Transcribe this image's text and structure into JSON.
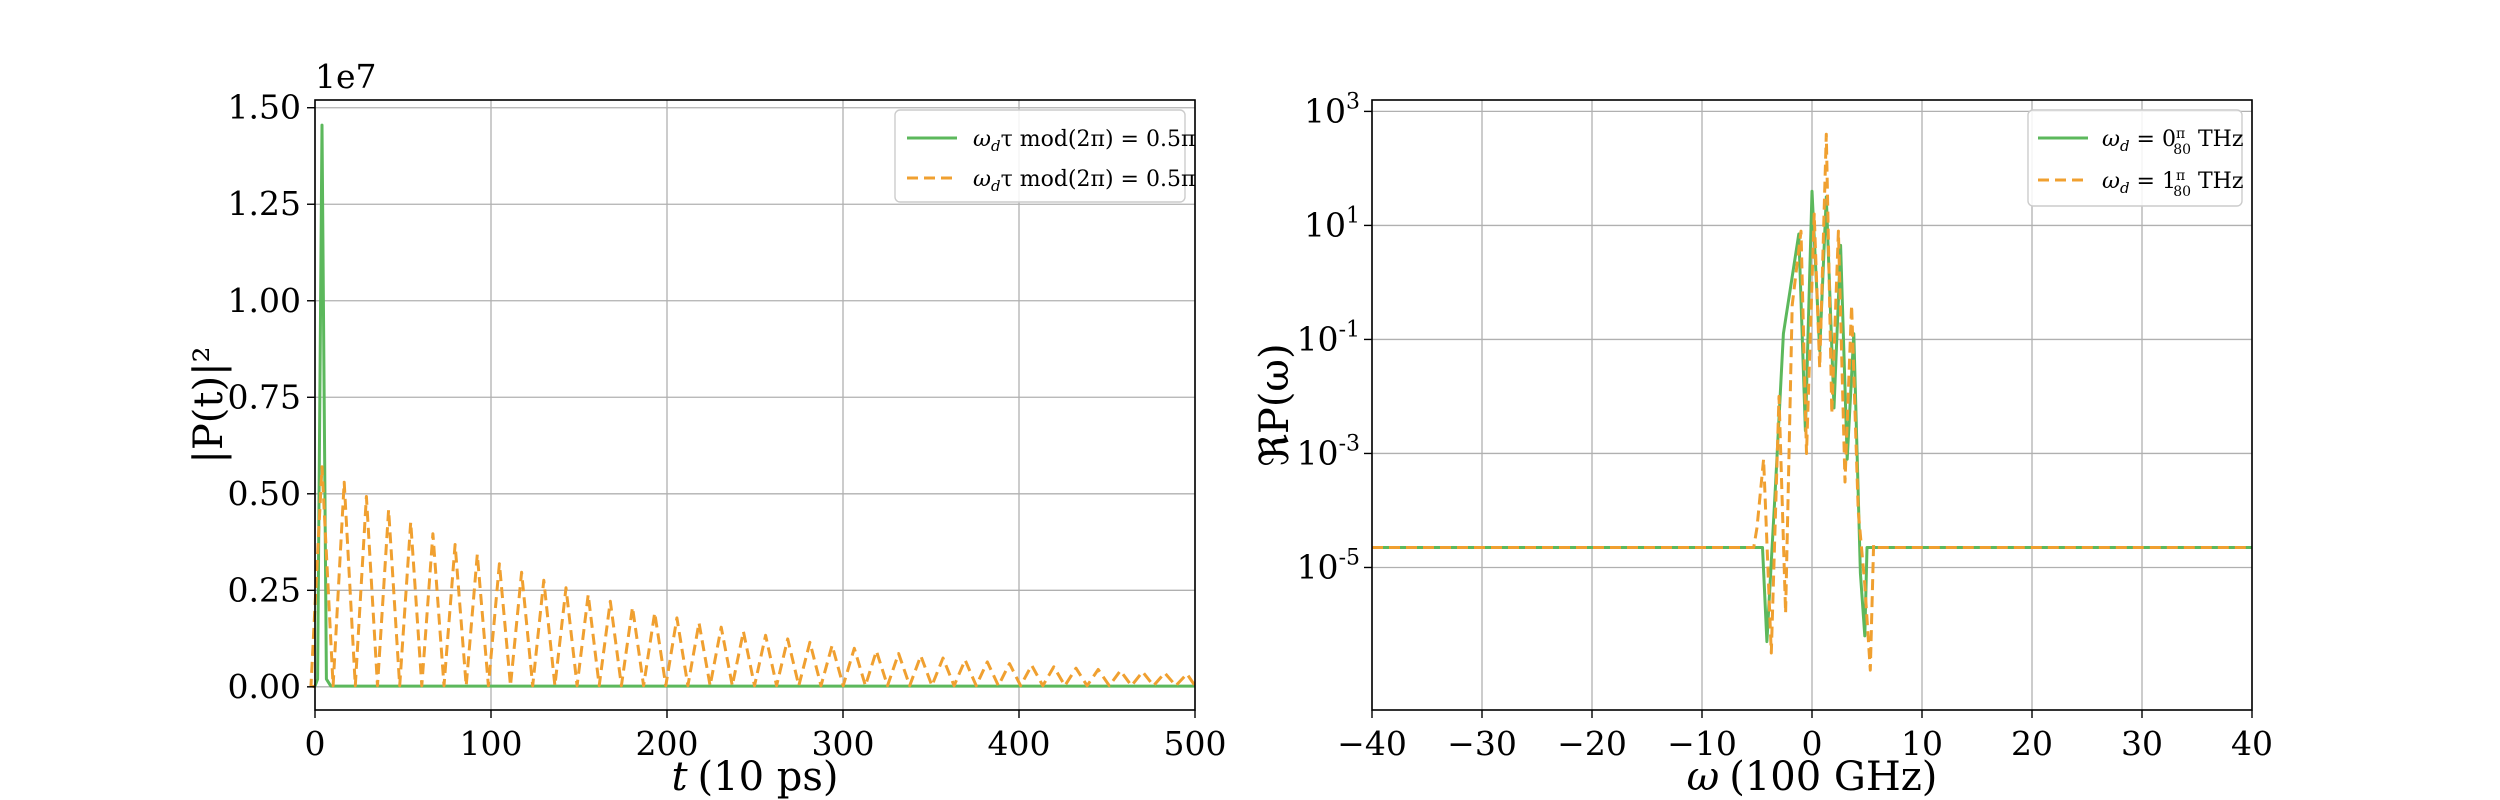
{
  "chart_data": [
    {
      "type": "line",
      "xlabel_var": "t",
      "xlabel_unit": "(10 ps)",
      "ylabel": "|P(t)|²",
      "offset_text": "1e7",
      "xlim": [
        0,
        500
      ],
      "ylim": [
        -0.06,
        1.52
      ],
      "xticks": [
        "0",
        "100",
        "200",
        "300",
        "400",
        "500"
      ],
      "yticks": [
        "0.00",
        "0.25",
        "0.50",
        "0.75",
        "1.00",
        "1.25",
        "1.50"
      ],
      "grid": true,
      "legend_position": "upper right",
      "series": [
        {
          "name": "ω_d τ mod(2π) = 0.5π",
          "color": "#5cb85c",
          "style": "solid",
          "pulse_train": {
            "first_peak_x": 4,
            "first_peak_y": 1.455,
            "period": 0,
            "decay_per_period": 0,
            "end_x": 500
          }
        },
        {
          "name": "ω_d τ mod(2π) = 0.5π",
          "color": "#f0a030",
          "style": "dashed",
          "pulse_train": {
            "first_peak_x": 4,
            "first_peak_y": 0.57,
            "period": 12.6,
            "decay_per_period": 0.93,
            "end_x": 500
          }
        }
      ]
    },
    {
      "type": "line",
      "xlabel_var": "ω",
      "xlabel_unit": "(100 GHz)",
      "ylabel": "ℜP(ω)",
      "xlim": [
        -40,
        40
      ],
      "ylim_log10": [
        -7.5,
        3.2
      ],
      "log_y": true,
      "xticks": [
        "−40",
        "−30",
        "−20",
        "−10",
        "0",
        "10",
        "20",
        "30",
        "40"
      ],
      "yticks": [
        {
          "base": "10",
          "exp": "3"
        },
        {
          "base": "10",
          "exp": "1"
        },
        {
          "base": "10",
          "exp": "-1"
        },
        {
          "base": "10",
          "exp": "-3"
        },
        {
          "base": "10",
          "exp": "-5"
        }
      ],
      "grid": true,
      "legend_position": "upper right",
      "series": [
        {
          "name": "ω_d = 0 π/80 THz",
          "color": "#5cb85c",
          "style": "solid",
          "baseline_log10": -4.65,
          "active_range": [
            -4.5,
            5.0
          ],
          "peaks": [
            [
              -4.1,
              -6.3
            ],
            [
              -3.3,
              -3.5
            ],
            [
              -2.6,
              -0.9
            ],
            [
              -1.2,
              0.85
            ],
            [
              -0.6,
              -2.6
            ],
            [
              0.0,
              1.6
            ],
            [
              0.7,
              -1.2
            ],
            [
              1.3,
              1.5
            ],
            [
              2.0,
              -2.2
            ],
            [
              2.6,
              0.65
            ],
            [
              3.2,
              -3.1
            ],
            [
              3.8,
              -0.9
            ],
            [
              4.4,
              -5.1
            ],
            [
              4.8,
              -6.2
            ]
          ]
        },
        {
          "name": "ω_d = 1 π/80 THz",
          "color": "#f0a030",
          "style": "dashed",
          "baseline_log10": -4.65,
          "active_range": [
            -5.3,
            5.8
          ],
          "peaks": [
            [
              -5.0,
              -4.3
            ],
            [
              -4.4,
              -3.1
            ],
            [
              -3.7,
              -6.5
            ],
            [
              -3.0,
              -2.0
            ],
            [
              -2.4,
              -5.8
            ],
            [
              -1.8,
              -0.4
            ],
            [
              -1.0,
              0.9
            ],
            [
              -0.5,
              -3.0
            ],
            [
              0.2,
              1.2
            ],
            [
              0.7,
              -1.5
            ],
            [
              1.3,
              2.6
            ],
            [
              1.8,
              -2.3
            ],
            [
              2.4,
              0.9
            ],
            [
              3.0,
              -3.5
            ],
            [
              3.6,
              -0.4
            ],
            [
              4.2,
              -4.0
            ],
            [
              4.8,
              -5.3
            ],
            [
              5.3,
              -6.8
            ],
            [
              5.6,
              -4.6
            ]
          ]
        }
      ]
    }
  ],
  "legend_layout": [
    {
      "prefix": "ω",
      "sub": "d",
      "mid": "τ mod(2π) = 0.5π"
    },
    {
      "prefix": "ω",
      "sub": "d",
      "mid": "τ mod(2π) = 0.5π"
    }
  ],
  "legend_layout_2": [
    {
      "prefix": "ω",
      "sub": "d",
      "mid": " = 0",
      "num": "π",
      "den": "80",
      "tail": " THz"
    },
    {
      "prefix": "ω",
      "sub": "d",
      "mid": " = 1",
      "num": "π",
      "den": "80",
      "tail": " THz"
    }
  ]
}
